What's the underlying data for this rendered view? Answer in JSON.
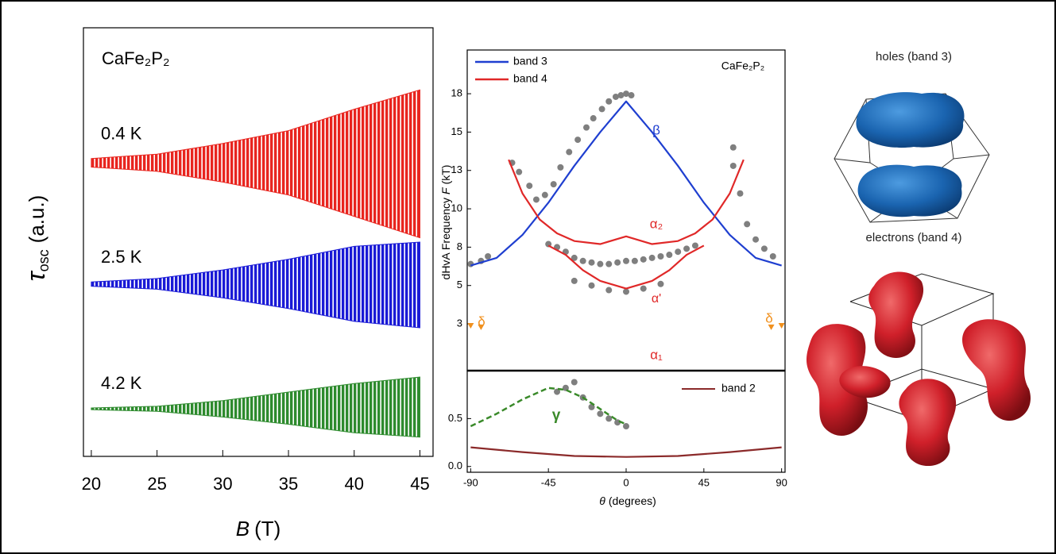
{
  "chart_data": [
    {
      "type": "band",
      "annotation": "CaFe₂P₂",
      "xlabel": {
        "symbol": "B",
        "unit": "(T)"
      },
      "ylabel": {
        "symbol": "τ",
        "subscript": "osc",
        "unit": "(a.u.)"
      },
      "x": [
        20,
        25,
        30,
        35,
        40,
        45
      ],
      "xlim": [
        19.4,
        46.0
      ],
      "xticks": [
        20,
        25,
        30,
        35,
        40,
        45
      ],
      "ylim": [
        0,
        10
      ],
      "series": [
        {
          "name": "0.4 K",
          "color": "#e8251f",
          "upper": [
            6.95,
            7.05,
            7.3,
            7.6,
            8.1,
            8.55
          ],
          "lower": [
            6.75,
            6.65,
            6.4,
            6.1,
            5.6,
            5.1
          ]
        },
        {
          "name": "2.5 K",
          "color": "#1a1ad6",
          "upper": [
            4.07,
            4.15,
            4.35,
            4.6,
            4.9,
            5.0
          ],
          "lower": [
            3.97,
            3.9,
            3.7,
            3.45,
            3.15,
            3.0
          ]
        },
        {
          "name": "4.2 K",
          "color": "#2e8b2e",
          "upper": [
            1.13,
            1.17,
            1.3,
            1.5,
            1.7,
            1.85
          ],
          "lower": [
            1.09,
            1.05,
            0.92,
            0.75,
            0.55,
            0.45
          ]
        }
      ]
    },
    {
      "type": "line",
      "ylabel": {
        "text": "dHvA Frequency",
        "symbol": "F",
        "unit": "(kT)"
      },
      "annotation": "CaFe₂P₂",
      "xlim": [
        -92,
        92
      ],
      "ylim": [
        -0.55,
        20.35
      ],
      "yticks": [
        {
          "value": 2.5,
          "label": "3"
        },
        {
          "value": 5,
          "label": "5"
        },
        {
          "value": 7.5,
          "label": "8"
        },
        {
          "value": 10,
          "label": "10"
        },
        {
          "value": 12.5,
          "label": "13"
        },
        {
          "value": 15,
          "label": "15"
        },
        {
          "value": 17.5,
          "label": "18"
        }
      ],
      "series": [
        {
          "mode": "scatter",
          "color": "#7f7f7f",
          "x": [
            -90,
            -84,
            -80,
            -66,
            -62,
            -56,
            -52,
            -47,
            -42,
            -38,
            -33,
            -28,
            -23,
            -19,
            -14,
            -10,
            -6,
            -3,
            0,
            3,
            -45,
            -40,
            -35,
            -30,
            -25,
            -20,
            -15,
            -10,
            -5,
            0,
            5,
            10,
            15,
            20,
            25,
            30,
            35,
            40,
            -30,
            -20,
            -10,
            0,
            10,
            20,
            62,
            62,
            66,
            70,
            75,
            80,
            85
          ],
          "values": [
            6.4,
            6.6,
            6.9,
            13.0,
            12.4,
            11.5,
            10.6,
            10.9,
            11.6,
            12.7,
            13.7,
            14.5,
            15.3,
            15.9,
            16.5,
            17.0,
            17.3,
            17.4,
            17.5,
            17.4,
            7.7,
            7.5,
            7.2,
            6.8,
            6.6,
            6.5,
            6.4,
            6.4,
            6.5,
            6.6,
            6.6,
            6.7,
            6.8,
            6.9,
            7.0,
            7.2,
            7.4,
            7.6,
            5.3,
            5.0,
            4.7,
            4.6,
            4.8,
            5.1,
            14.0,
            12.8,
            11.0,
            9.0,
            8.0,
            7.4,
            6.9
          ]
        },
        {
          "mode": "triangles",
          "color": "#f0901e",
          "x": [
            -90,
            -84,
            84,
            90
          ],
          "values": [
            2.4,
            2.3,
            2.3,
            2.4
          ]
        },
        {
          "mode": "line",
          "name": "band 3",
          "color": "#1f3fd0",
          "x": [
            -90,
            -75,
            -60,
            -45,
            -30,
            -15,
            0,
            15,
            30,
            45,
            60,
            75,
            90
          ],
          "values": [
            6.3,
            6.8,
            8.3,
            10.4,
            12.8,
            15.0,
            17.0,
            15.0,
            12.8,
            10.4,
            8.3,
            6.8,
            6.3
          ]
        },
        {
          "mode": "line",
          "name": "band 4",
          "color": "#e02828",
          "x": [
            -68,
            -60,
            -50,
            -40,
            -30,
            -15,
            0,
            15,
            30,
            40,
            50,
            60,
            68
          ],
          "values": [
            13.2,
            11.0,
            9.3,
            8.4,
            7.9,
            7.7,
            8.2,
            7.7,
            7.9,
            8.4,
            9.3,
            11.0,
            13.2
          ]
        },
        {
          "mode": "line",
          "color": "#e02828",
          "x": [
            -45,
            -35,
            -25,
            -15,
            0,
            15,
            25,
            35,
            45
          ],
          "values": [
            7.6,
            7.0,
            6.0,
            5.3,
            4.8,
            5.3,
            6.0,
            7.0,
            7.6
          ]
        }
      ],
      "annotations": [
        {
          "text": "β",
          "color": "#1f3fd0"
        },
        {
          "text": "α₂",
          "color": "#e02828"
        },
        {
          "text": "α'",
          "color": "#e02828"
        },
        {
          "text": "α₁",
          "color": "#e02828"
        },
        {
          "text": "δ",
          "color": "#f0901e"
        },
        {
          "text": "δ",
          "color": "#f0901e"
        }
      ]
    },
    {
      "type": "line",
      "xlabel": {
        "symbol": "θ",
        "unit": "(degrees)"
      },
      "xlim": [
        -92,
        92
      ],
      "xticks": [
        -90,
        -45,
        0,
        45,
        90
      ],
      "ylim": [
        -0.06,
        1.0
      ],
      "yticks": [
        {
          "value": 0,
          "label": "0.0"
        },
        0.5
      ],
      "series": [
        {
          "mode": "scatter",
          "color": "#7f7f7f",
          "x": [
            -40,
            -35,
            -30,
            -25,
            -20,
            -15,
            -10,
            -5,
            0
          ],
          "values": [
            0.78,
            0.82,
            0.88,
            0.72,
            0.62,
            0.55,
            0.5,
            0.46,
            0.42
          ]
        },
        {
          "mode": "dashed",
          "color": "#3a8a2a",
          "x": [
            -90,
            -75,
            -60,
            -45,
            -35,
            -25,
            -15,
            -5,
            0
          ],
          "values": [
            0.42,
            0.55,
            0.7,
            0.82,
            0.8,
            0.72,
            0.6,
            0.48,
            0.44
          ]
        },
        {
          "mode": "line",
          "name": "band 2",
          "color": "#8b2a2a",
          "x": [
            -90,
            -60,
            -30,
            0,
            30,
            60,
            90
          ],
          "values": [
            0.2,
            0.15,
            0.11,
            0.1,
            0.11,
            0.15,
            0.2
          ]
        }
      ],
      "annotations": [
        {
          "text": "γ",
          "color": "#3a8a2a"
        }
      ]
    }
  ],
  "images": [
    {
      "label": "holes (band 3)"
    },
    {
      "label": "electrons (band 4)"
    }
  ]
}
